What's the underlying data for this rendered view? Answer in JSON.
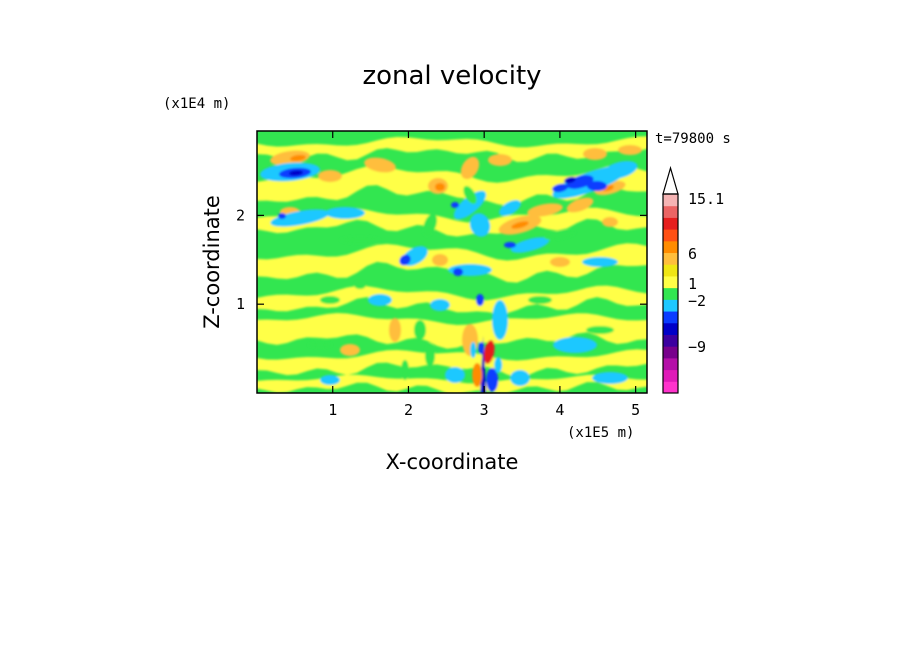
{
  "chart_data": {
    "type": "heatmap",
    "title": "zonal velocity",
    "xlabel": "X-coordinate",
    "ylabel": "Z-coordinate",
    "x_unit": "(x1E5 m)",
    "y_unit": "(x1E4 m)",
    "time_label": "t=79800 s",
    "xlim": [
      0,
      5.15
    ],
    "ylim": [
      0,
      2.95
    ],
    "x_ticks": [
      "1",
      "2",
      "3",
      "4",
      "5"
    ],
    "y_ticks": [
      "1",
      "2"
    ],
    "colorbar": {
      "levels": [
        -13.5,
        -12,
        -10.5,
        -9,
        -7.5,
        -6,
        -4.5,
        -2,
        -1,
        1,
        1.5,
        3,
        4.5,
        6,
        7.5,
        9,
        10.5,
        12,
        13.5,
        15.1
      ],
      "colors": [
        "#ff33cc",
        "#e01ab8",
        "#b40fa8",
        "#78008c",
        "#3c00a0",
        "#0000c8",
        "#0a3cff",
        "#1ec8ff",
        "#32e650",
        "#ffff46",
        "#f0e614",
        "#ffbe3c",
        "#ff8c00",
        "#ff5014",
        "#e61e1e",
        "#eb6464",
        "#f5b4b4"
      ],
      "labels": [
        "15.1",
        "6",
        "1",
        "−2",
        "−9"
      ]
    }
  }
}
